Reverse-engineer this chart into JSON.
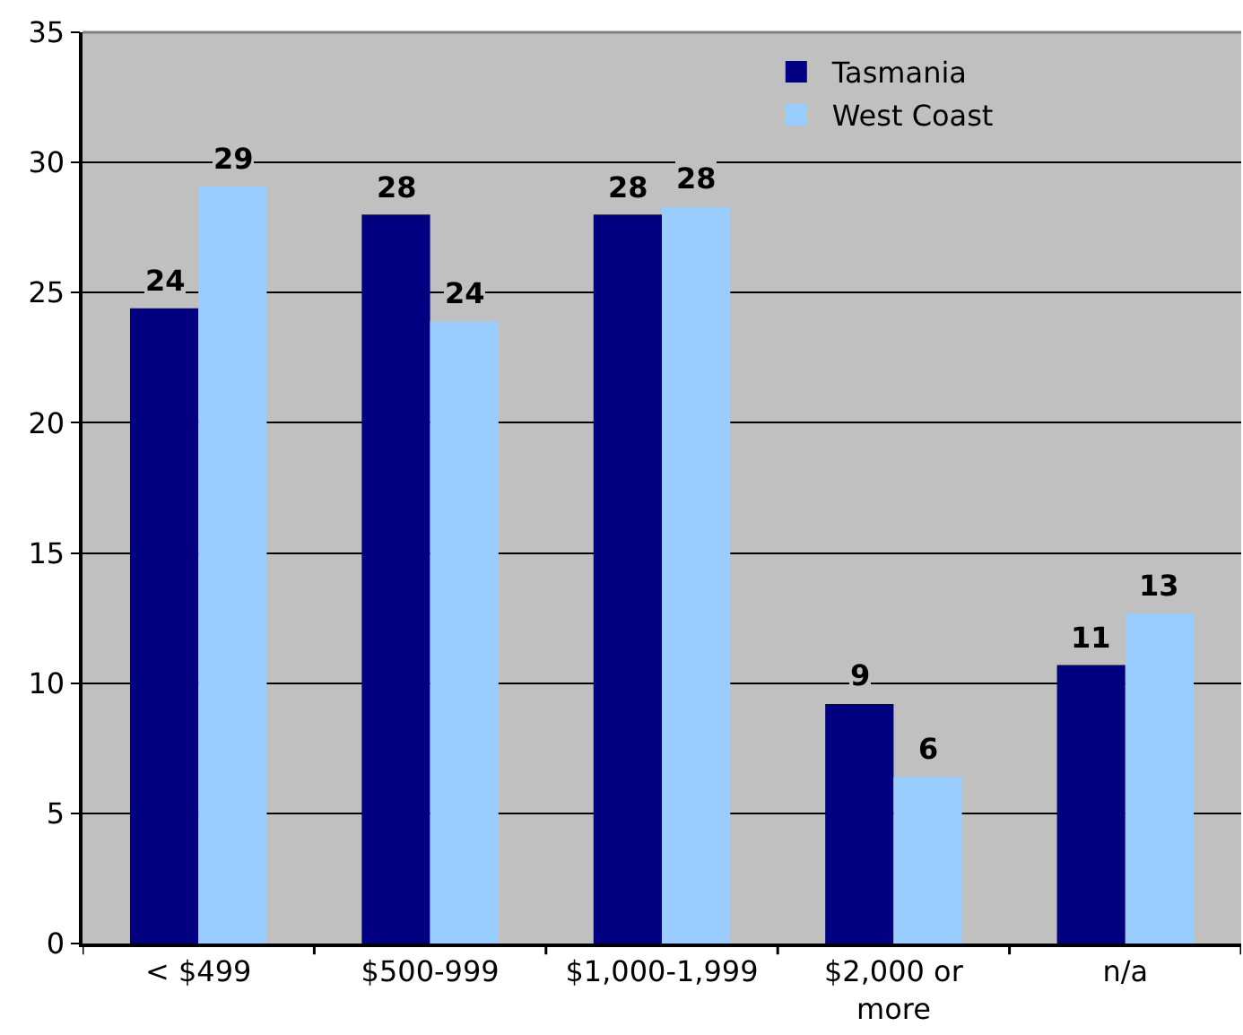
{
  "chart_data": {
    "type": "bar",
    "categories": [
      "< $499",
      "$500-999",
      "$1,000-1,999",
      "$2,000 or more",
      "n/a"
    ],
    "series": [
      {
        "name": "Tasmania",
        "color": "#000080",
        "values": [
          24.4,
          28.0,
          28.0,
          9.2,
          10.7
        ],
        "value_labels": [
          "24",
          "28",
          "28",
          "9",
          "11"
        ]
      },
      {
        "name": "West Coast",
        "color": "#99ccff",
        "values": [
          29.1,
          23.9,
          28.3,
          6.4,
          12.7
        ],
        "value_labels": [
          "29",
          "24",
          "28",
          "6",
          "13"
        ]
      }
    ],
    "ylim": [
      0,
      35
    ],
    "yticks": [
      0,
      5,
      10,
      15,
      20,
      25,
      30,
      35
    ],
    "grid": "y",
    "legend": "top right"
  }
}
